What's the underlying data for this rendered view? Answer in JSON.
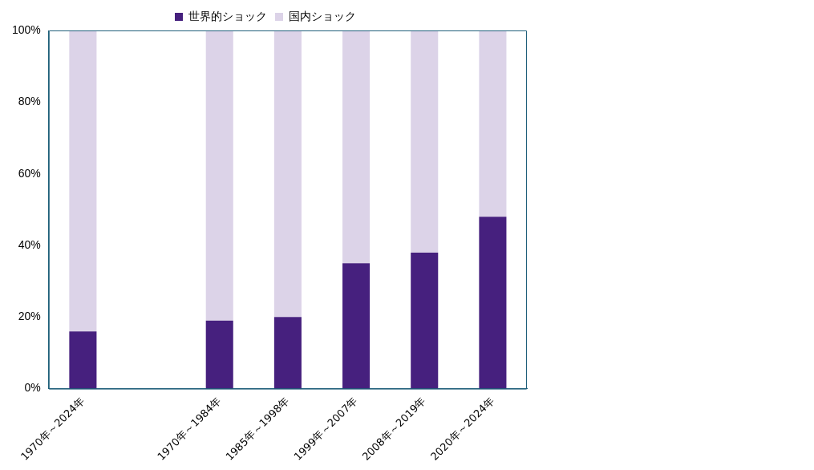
{
  "chart_data": {
    "type": "bar",
    "stacked": true,
    "categories": [
      "1970年～2024年",
      null,
      "1970年～1984年",
      "1985年～1998年",
      "1999年～2007年",
      "2008年～2019年",
      "2020年～2024年"
    ],
    "series": [
      {
        "name": "世界的ショック",
        "color": "#46207e",
        "values": [
          16,
          null,
          19,
          20,
          35,
          38,
          48
        ]
      },
      {
        "name": "国内ショック",
        "color": "#dcd3e8",
        "values": [
          84,
          null,
          81,
          80,
          65,
          62,
          52
        ]
      }
    ],
    "ylim": [
      0,
      100
    ],
    "yticks": [
      {
        "value": 0,
        "label": "0%"
      },
      {
        "value": 20,
        "label": "20%"
      },
      {
        "value": 40,
        "label": "40%"
      },
      {
        "value": 60,
        "label": "60%"
      },
      {
        "value": 80,
        "label": "80%"
      },
      {
        "value": 100,
        "label": "100%"
      }
    ],
    "grid": false,
    "legend": "top"
  }
}
